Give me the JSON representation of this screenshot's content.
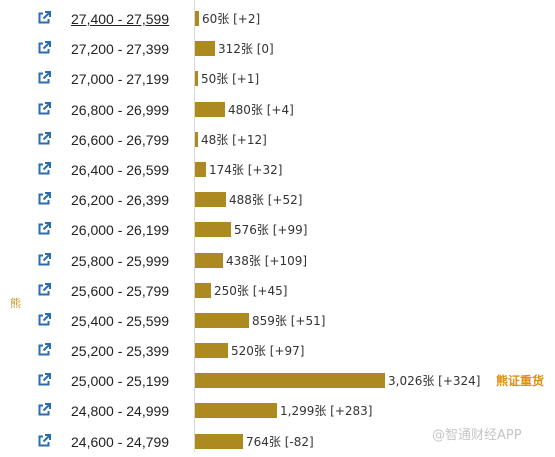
{
  "side_label": "熊",
  "watermark": "@智通财经APP",
  "colors": {
    "bar": "#ad8a20",
    "link_icon": "#2b6cb0",
    "tag": "#e0900e",
    "side_label": "#c8951e"
  },
  "row_icon": "external-link-icon",
  "rows": [
    {
      "range": "27,400 - 27,599",
      "label": "60张 [+2]",
      "count": 60
    },
    {
      "range": "27,200 - 27,399",
      "label": "312张 [0]",
      "count": 312
    },
    {
      "range": "27,000 - 27,199",
      "label": "50张 [+1]",
      "count": 50
    },
    {
      "range": "26,800 - 26,999",
      "label": "480张 [+4]",
      "count": 480
    },
    {
      "range": "26,600 - 26,799",
      "label": "48张 [+12]",
      "count": 48
    },
    {
      "range": "26,400 - 26,599",
      "label": "174张 [+32]",
      "count": 174
    },
    {
      "range": "26,200 - 26,399",
      "label": "488张 [+52]",
      "count": 488
    },
    {
      "range": "26,000 - 26,199",
      "label": "576张 [+99]",
      "count": 576
    },
    {
      "range": "25,800 - 25,999",
      "label": "438张 [+109]",
      "count": 438
    },
    {
      "range": "25,600 - 25,799",
      "label": "250张 [+45]",
      "count": 250
    },
    {
      "range": "25,400 - 25,599",
      "label": "859张 [+51]",
      "count": 859
    },
    {
      "range": "25,200 - 25,399",
      "label": "520张 [+97]",
      "count": 520
    },
    {
      "range": "25,000 - 25,199",
      "label": "3,026张 [+324]",
      "count": 3026,
      "tag": "熊证重货"
    },
    {
      "range": "24,800 - 24,999",
      "label": "1,299张 [+283]",
      "count": 1299
    },
    {
      "range": "24,600 - 24,799",
      "label": "764张 [-82]",
      "count": 764
    }
  ]
}
